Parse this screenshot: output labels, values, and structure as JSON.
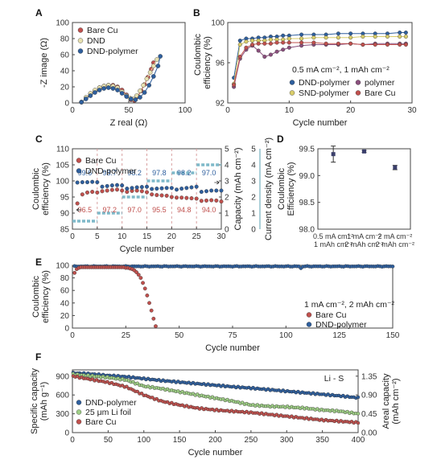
{
  "chart_data": [
    {
      "panel": "A",
      "type": "scatter",
      "xlabel": "Z_real (Ω)",
      "ylabel": "-Z_image (Ω)",
      "xlim": [
        0,
        100
      ],
      "ylim": [
        0,
        100
      ],
      "xticks": [
        0,
        50,
        100
      ],
      "yticks": [
        0,
        20,
        40,
        60,
        80,
        100
      ],
      "legend": "top-left",
      "series": [
        {
          "name": "Bare Cu",
          "color": "#c0504d",
          "x": [
            8,
            12,
            16,
            20,
            24,
            28,
            32,
            36,
            40,
            44,
            48,
            52,
            55,
            58,
            61,
            64,
            67,
            70,
            72
          ],
          "y": [
            1,
            6,
            11,
            15,
            19,
            21,
            22,
            22,
            20,
            16,
            10,
            4,
            3,
            8,
            15,
            23,
            32,
            42,
            50
          ]
        },
        {
          "name": "DND",
          "color": "#e8e1b0",
          "x": [
            8,
            12,
            16,
            20,
            24,
            28,
            32,
            36,
            40,
            44,
            48,
            51,
            54,
            57,
            60,
            63,
            66,
            69,
            72,
            75
          ],
          "y": [
            1,
            7,
            12,
            16,
            19,
            21,
            22,
            21,
            19,
            14,
            9,
            6,
            5,
            9,
            15,
            22,
            30,
            38,
            46,
            54
          ]
        },
        {
          "name": "DND-polymer",
          "color": "#2e5f9e",
          "x": [
            8,
            12,
            16,
            20,
            24,
            28,
            32,
            36,
            40,
            44,
            48,
            52,
            56,
            60,
            64,
            68,
            72,
            76,
            78
          ],
          "y": [
            1,
            5,
            9,
            13,
            16,
            18,
            19,
            18,
            16,
            12,
            8,
            5,
            4,
            7,
            13,
            22,
            33,
            46,
            58
          ]
        }
      ]
    },
    {
      "panel": "B",
      "type": "line",
      "xlabel": "Cycle number",
      "ylabel": "Coulombic efficiency (%)",
      "xlim": [
        0,
        30
      ],
      "ylim": [
        92,
        100
      ],
      "xticks": [
        0,
        10,
        20,
        30
      ],
      "yticks": [
        92,
        96,
        100
      ],
      "annotation": "0.5 mA cm⁻², 1 mAh cm⁻²",
      "legend": "bottom-right",
      "series": [
        {
          "name": "DND-polymer",
          "color": "#2e5f9e",
          "x": [
            1,
            2,
            3,
            4,
            5,
            6,
            7,
            8,
            9,
            10,
            12,
            14,
            16,
            18,
            20,
            22,
            24,
            26,
            28,
            29
          ],
          "y": [
            94.5,
            98.2,
            98.4,
            98.4,
            98.5,
            98.5,
            98.6,
            98.6,
            98.7,
            98.7,
            98.8,
            98.8,
            98.8,
            98.9,
            98.9,
            98.9,
            98.9,
            98.9,
            99.0,
            99.0
          ]
        },
        {
          "name": "polymer",
          "color": "#8a4f7d",
          "x": [
            1,
            2,
            3,
            4,
            5,
            6,
            7,
            8,
            9,
            10,
            12,
            14,
            16,
            18,
            20,
            22,
            24,
            26,
            28,
            29
          ],
          "y": [
            93.6,
            96.4,
            97.3,
            97.7,
            97.2,
            96.6,
            96.8,
            97.1,
            97.3,
            97.5,
            97.7,
            97.8,
            97.8,
            97.8,
            97.9,
            97.8,
            97.9,
            97.9,
            97.9,
            97.9
          ]
        },
        {
          "name": "SND-polymer",
          "color": "#d9cd6a",
          "x": [
            1,
            2,
            3,
            4,
            5,
            6,
            7,
            8,
            9,
            10,
            12,
            14,
            16,
            18,
            20,
            22,
            24,
            26,
            28,
            29
          ],
          "y": [
            93.9,
            97.8,
            98.1,
            98.2,
            98.2,
            98.2,
            98.3,
            98.3,
            98.3,
            98.4,
            98.4,
            98.5,
            98.5,
            98.5,
            98.5,
            98.6,
            98.6,
            98.6,
            98.6,
            98.6
          ]
        },
        {
          "name": "Bare Cu",
          "color": "#c0504d",
          "x": [
            1,
            2,
            3,
            4,
            5,
            6,
            7,
            8,
            9,
            10,
            12,
            14,
            16,
            18,
            20,
            22,
            24,
            26,
            28,
            29
          ],
          "y": [
            93.8,
            96.6,
            97.5,
            97.8,
            97.9,
            97.9,
            97.9,
            98.0,
            98.0,
            98.0,
            98.0,
            98.0,
            97.9,
            97.9,
            97.9,
            97.8,
            97.8,
            97.8,
            97.8,
            97.8
          ]
        }
      ]
    },
    {
      "panel": "C",
      "type": "scatter",
      "xlabel": "Cycle number",
      "ylabel": "Coulombic efficiency (%)",
      "y2label": "Capacity (mAh cm⁻²)",
      "y3label": "Current density (mA cm⁻²)",
      "xlim": [
        0,
        30
      ],
      "ylim": [
        85,
        110
      ],
      "y2lim": [
        0,
        5
      ],
      "xticks": [
        0,
        5,
        10,
        15,
        20,
        25,
        30
      ],
      "yticks": [
        85,
        90,
        95,
        100,
        105,
        110
      ],
      "y2ticks": [
        0,
        1,
        2,
        3,
        4,
        5
      ],
      "legend": "top-left",
      "series": [
        {
          "name": "Bare Cu",
          "color": "#c0504d",
          "x": [
            1,
            2,
            3,
            4,
            5,
            6,
            7,
            8,
            9,
            10,
            11,
            12,
            13,
            14,
            15,
            16,
            17,
            18,
            19,
            20,
            21,
            22,
            23,
            24,
            25,
            26,
            27,
            28,
            29,
            30
          ],
          "y": [
            93.0,
            95.8,
            96.4,
            96.6,
            96.4,
            96.8,
            97.0,
            97.2,
            97.3,
            97.0,
            96.6,
            96.9,
            97.0,
            96.8,
            96.5,
            95.8,
            95.6,
            95.5,
            95.4,
            95.0,
            94.8,
            94.8,
            94.7,
            94.6,
            94.5,
            93.8,
            93.9,
            94.0,
            93.9,
            93.6
          ]
        },
        {
          "name": "DND-polymer",
          "color": "#2e5f9e",
          "x": [
            1,
            2,
            3,
            4,
            5,
            6,
            7,
            8,
            9,
            10,
            11,
            12,
            13,
            14,
            15,
            16,
            17,
            18,
            19,
            20,
            21,
            22,
            23,
            24,
            25,
            26,
            27,
            28,
            29,
            30
          ],
          "y": [
            99.5,
            99.6,
            99.6,
            99.7,
            99.6,
            98.2,
            98.4,
            98.6,
            98.7,
            98.6,
            97.6,
            97.8,
            98.0,
            98.1,
            98.2,
            97.5,
            97.6,
            97.7,
            97.8,
            97.8,
            97.3,
            97.6,
            97.8,
            98.0,
            98.2,
            96.6,
            96.8,
            97.0,
            97.0,
            97.0
          ]
        }
      ],
      "capacity_steps": [
        {
          "x_start": 0,
          "x_end": 5,
          "capacity": 0.5
        },
        {
          "x_start": 5,
          "x_end": 10,
          "capacity": 1
        },
        {
          "x_start": 10,
          "x_end": 15,
          "capacity": 2
        },
        {
          "x_start": 15,
          "x_end": 20,
          "capacity": 3
        },
        {
          "x_start": 20,
          "x_end": 25,
          "capacity": 3.5
        },
        {
          "x_start": 25,
          "x_end": 30,
          "capacity": 4
        }
      ],
      "labels_blue": [
        {
          "x": 2.5,
          "text": "99.6"
        },
        {
          "x": 7.5,
          "text": "98.7"
        },
        {
          "x": 12.5,
          "text": "98.2"
        },
        {
          "x": 17.5,
          "text": "97.8"
        },
        {
          "x": 22.5,
          "text": "98.2"
        },
        {
          "x": 27.5,
          "text": "97.0"
        }
      ],
      "labels_red": [
        {
          "x": 2.5,
          "text": "96.5"
        },
        {
          "x": 7.5,
          "text": "97.2"
        },
        {
          "x": 12.5,
          "text": "97.0"
        },
        {
          "x": 17.5,
          "text": "95.5"
        },
        {
          "x": 22.5,
          "text": "94.8"
        },
        {
          "x": 27.5,
          "text": "94.0"
        }
      ],
      "step_color": "#7fb9c9"
    },
    {
      "panel": "D",
      "type": "scatter",
      "ylabel": "Coulombic Efficiency (%)",
      "ylim": [
        98.0,
        99.5
      ],
      "yticks": [
        98.0,
        98.5,
        99.0,
        99.5
      ],
      "categories": [
        "0.5 mA cm⁻² 1 mAh cm⁻²",
        "1 mA cm⁻² 2 mAh cm⁻²",
        "2 mA cm⁻² 2 mAh cm⁻²"
      ],
      "values": [
        99.4,
        99.45,
        99.15
      ],
      "errors": [
        0.15,
        0.02,
        0.04
      ],
      "color": "#3b3f6b"
    },
    {
      "panel": "E",
      "type": "scatter",
      "xlabel": "Cycle number",
      "ylabel": "Coulombic efficiency (%)",
      "xlim": [
        0,
        150
      ],
      "ylim": [
        0,
        100
      ],
      "xticks": [
        0,
        25,
        50,
        75,
        100,
        125,
        150
      ],
      "yticks": [
        0,
        20,
        40,
        60,
        80,
        100
      ],
      "annotation": "1 mA cm⁻², 2 mAh cm⁻²",
      "legend": "bottom-right",
      "series": [
        {
          "name": "Bare Cu",
          "color": "#c0504d",
          "x": [
            1,
            2,
            3,
            4,
            5,
            6,
            7,
            8,
            9,
            10,
            11,
            12,
            13,
            14,
            15,
            16,
            17,
            18,
            19,
            20,
            21,
            22,
            23,
            24,
            25,
            26,
            27,
            28,
            29,
            30,
            31,
            32,
            33,
            34,
            35,
            36,
            37,
            38,
            39
          ],
          "y": [
            88,
            94,
            96,
            97,
            97,
            97,
            97,
            97,
            97,
            97,
            97,
            97,
            97,
            97,
            97,
            97,
            97,
            97,
            97,
            97,
            97,
            97,
            97,
            97,
            96,
            96,
            95,
            94,
            92,
            89,
            85,
            80,
            72,
            63,
            52,
            40,
            28,
            15,
            3
          ]
        },
        {
          "name": "DND-polymer",
          "color": "#2e5f9e",
          "x_start": 1,
          "x_end": 150,
          "base": 98.4,
          "amplitude": 0.6,
          "dips": [
            {
              "x": 107,
              "y": 95.5
            }
          ]
        }
      ]
    },
    {
      "panel": "F",
      "type": "scatter",
      "xlabel": "Cycle number",
      "ylabel": "Specific capacity (mAh g⁻¹)",
      "y2label": "Areal capacity (mAh cm⁻²)",
      "annotation": "Li - S",
      "xlim": [
        0,
        400
      ],
      "ylim": [
        0,
        1000
      ],
      "y2lim": [
        0,
        1.5
      ],
      "xticks": [
        0,
        50,
        100,
        150,
        200,
        250,
        300,
        350,
        400
      ],
      "yticks": [
        0,
        300,
        600,
        900
      ],
      "y2ticks": [
        0.0,
        0.45,
        0.9,
        1.35
      ],
      "legend": "bottom-left",
      "series": [
        {
          "name": "DND-polymer",
          "color": "#2e5f9e",
          "x": [
            1,
            10,
            25,
            50,
            75,
            100,
            125,
            150,
            175,
            200,
            225,
            250,
            275,
            300,
            325,
            350,
            375,
            400
          ],
          "y": [
            950,
            945,
            935,
            910,
            890,
            860,
            830,
            805,
            780,
            755,
            730,
            710,
            685,
            660,
            635,
            610,
            585,
            555
          ]
        },
        {
          "name": "25 μm Li foil",
          "color": "#9fcf86",
          "x": [
            1,
            10,
            25,
            50,
            75,
            100,
            125,
            150,
            175,
            200,
            225,
            250,
            275,
            300,
            325,
            350,
            375,
            400
          ],
          "y": [
            930,
            920,
            905,
            880,
            840,
            740,
            700,
            650,
            600,
            550,
            500,
            440,
            420,
            410,
            390,
            360,
            340,
            300
          ]
        },
        {
          "name": "Bare Cu",
          "color": "#c0504d",
          "x": [
            1,
            10,
            25,
            50,
            75,
            100,
            125,
            150,
            175,
            200,
            225,
            250,
            275,
            300,
            325,
            350,
            375,
            400
          ],
          "y": [
            900,
            880,
            850,
            800,
            730,
            600,
            500,
            440,
            390,
            360,
            340,
            320,
            290,
            260,
            230,
            200,
            180,
            160
          ]
        }
      ]
    }
  ],
  "panel_labels": [
    "A",
    "B",
    "C",
    "D",
    "E",
    "F"
  ]
}
